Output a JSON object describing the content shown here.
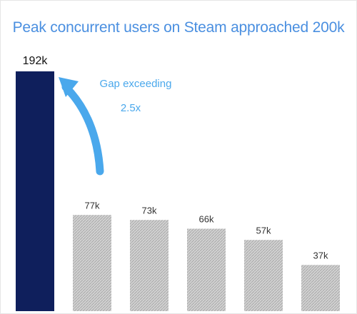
{
  "chart_data": {
    "type": "bar",
    "title": "Peak concurrent users on Steam approached 200k",
    "xlabel": "",
    "ylabel": "",
    "ylim": [
      0,
      200
    ],
    "grid": false,
    "legend": "none",
    "categories": [
      "",
      "",
      "",
      "",
      "",
      ""
    ],
    "values": [
      192,
      77,
      73,
      66,
      57,
      37
    ],
    "labels": [
      "192k",
      "77k",
      "73k",
      "66k",
      "57k",
      "37k"
    ],
    "colors": {
      "highlight": "#0f1f5c",
      "others": "#c4c4c4",
      "title": "#4a8fe0",
      "annotation": "#4aa8ec"
    },
    "annotation": {
      "line1": "Gap exceeding",
      "line2": "2.5x"
    }
  }
}
